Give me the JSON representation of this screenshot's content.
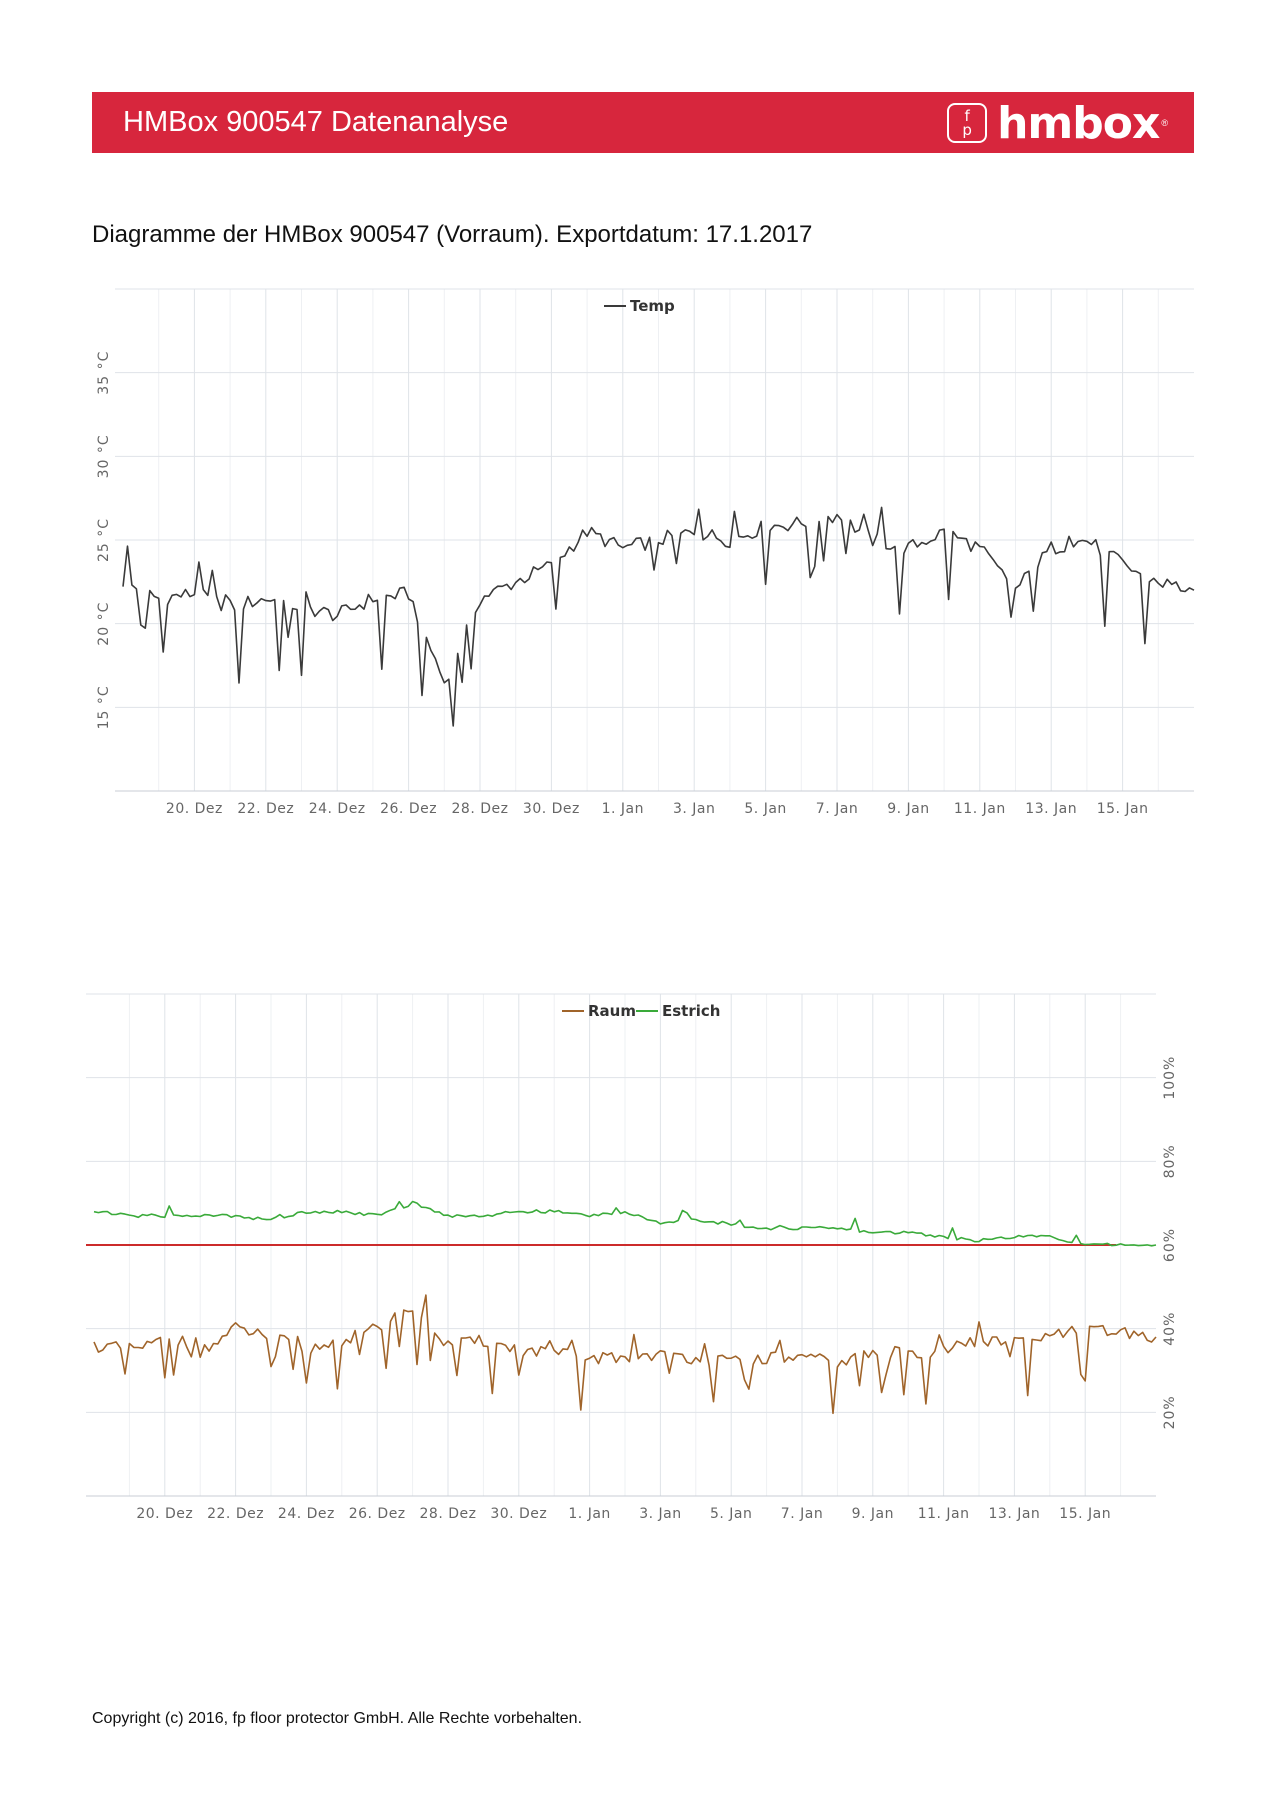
{
  "header": {
    "title": "HMBox 900547 Datenanalyse",
    "logo_mark_top": "f",
    "logo_mark_bottom": "p",
    "logo_text": "hmbox",
    "logo_reg": "®"
  },
  "subtitle": "Diagramme der HMBox 900547 (Vorraum). Exportdatum: 17.1.2017",
  "footer": "Copyright (c) 2016, fp floor protector GmbH. Alle Rechte vorbehalten.",
  "colors": {
    "header_bg": "#d7263d",
    "temp_line": "#3a3a3a",
    "raum_line": "#a0642a",
    "estrich_line": "#3aaa3a",
    "threshold_line": "#cc2b2b",
    "grid": "#dfe3e8"
  },
  "chart_data": [
    {
      "type": "line",
      "title": "",
      "xlabel": "",
      "ylabel": "",
      "x_tick_labels": [
        "20. Dez",
        "22. Dez",
        "24. Dez",
        "26. Dez",
        "28. Dez",
        "30. Dez",
        "1. Jan",
        "3. Jan",
        "5. Jan",
        "7. Jan",
        "9. Jan",
        "11. Jan",
        "13. Jan",
        "15. Jan"
      ],
      "y_tick_labels": [
        "15 °C",
        "20 °C",
        "25 °C",
        "30 °C",
        "35 °C"
      ],
      "x_range": [
        "2016-12-18",
        "2017-01-17"
      ],
      "ylim": [
        10,
        40
      ],
      "legend": {
        "position": "top-center",
        "entries": [
          "Temp"
        ]
      },
      "grid": true,
      "series": [
        {
          "name": "Temp",
          "x": [
            "2016-12-18",
            "2016-12-19",
            "2016-12-20",
            "2016-12-21",
            "2016-12-22",
            "2016-12-23",
            "2016-12-24",
            "2016-12-25",
            "2016-12-26",
            "2016-12-27",
            "2016-12-28",
            "2016-12-29",
            "2016-12-30",
            "2016-12-31",
            "2017-01-01",
            "2017-01-02",
            "2017-01-03",
            "2017-01-04",
            "2017-01-05",
            "2017-01-06",
            "2017-01-07",
            "2017-01-08",
            "2017-01-09",
            "2017-01-10",
            "2017-01-11",
            "2017-01-12",
            "2017-01-13",
            "2017-01-14",
            "2017-01-15",
            "2017-01-16",
            "2017-01-17"
          ],
          "y": [
            22.5,
            21.5,
            21.8,
            21.0,
            21.5,
            21.0,
            20.5,
            21.5,
            21.8,
            16.5,
            21.5,
            22.5,
            23.5,
            25.5,
            24.5,
            25.0,
            25.5,
            25.0,
            25.8,
            26.0,
            26.5,
            25.0,
            24.5,
            25.5,
            24.5,
            22.0,
            24.5,
            25.0,
            23.5,
            22.5,
            22.0
          ]
        }
      ]
    },
    {
      "type": "line",
      "title": "",
      "xlabel": "",
      "ylabel": "",
      "x_tick_labels": [
        "20. Dez",
        "22. Dez",
        "24. Dez",
        "26. Dez",
        "28. Dez",
        "30. Dez",
        "1. Jan",
        "3. Jan",
        "5. Jan",
        "7. Jan",
        "9. Jan",
        "11. Jan",
        "13. Jan",
        "15. Jan"
      ],
      "y_tick_labels": [
        "20%",
        "40%",
        "60%",
        "80%",
        "100%"
      ],
      "x_range": [
        "2016-12-18",
        "2017-01-17"
      ],
      "ylim": [
        0,
        120
      ],
      "legend": {
        "position": "top-center",
        "entries": [
          "Raum",
          "Estrich"
        ]
      },
      "grid": true,
      "threshold": 60,
      "series": [
        {
          "name": "Raum",
          "x": [
            "2016-12-18",
            "2016-12-19",
            "2016-12-20",
            "2016-12-21",
            "2016-12-22",
            "2016-12-23",
            "2016-12-24",
            "2016-12-25",
            "2016-12-26",
            "2016-12-27",
            "2016-12-28",
            "2016-12-29",
            "2016-12-30",
            "2016-12-31",
            "2017-01-01",
            "2017-01-02",
            "2017-01-03",
            "2017-01-04",
            "2017-01-05",
            "2017-01-06",
            "2017-01-07",
            "2017-01-08",
            "2017-01-09",
            "2017-01-10",
            "2017-01-11",
            "2017-01-12",
            "2017-01-13",
            "2017-01-14",
            "2017-01-15",
            "2017-01-16",
            "2017-01-17"
          ],
          "y": [
            36,
            35,
            37,
            34,
            40,
            38,
            35,
            37,
            40,
            45,
            36,
            37,
            35,
            34,
            33,
            33,
            34,
            33,
            32,
            33,
            33,
            32,
            34,
            34,
            35,
            37,
            37,
            38,
            40,
            39,
            38
          ]
        },
        {
          "name": "Estrich",
          "x": [
            "2016-12-18",
            "2016-12-19",
            "2016-12-20",
            "2016-12-21",
            "2016-12-22",
            "2016-12-23",
            "2016-12-24",
            "2016-12-25",
            "2016-12-26",
            "2016-12-27",
            "2016-12-28",
            "2016-12-29",
            "2016-12-30",
            "2016-12-31",
            "2017-01-01",
            "2017-01-02",
            "2017-01-03",
            "2017-01-04",
            "2017-01-05",
            "2017-01-06",
            "2017-01-07",
            "2017-01-08",
            "2017-01-09",
            "2017-01-10",
            "2017-01-11",
            "2017-01-12",
            "2017-01-13",
            "2017-01-14",
            "2017-01-15",
            "2017-01-16",
            "2017-01-17"
          ],
          "y": [
            68,
            67,
            67,
            67,
            67,
            66,
            68,
            68,
            67,
            70,
            67,
            67,
            68,
            68,
            67,
            68,
            65,
            66,
            65,
            64,
            64,
            64,
            63,
            63,
            62,
            61,
            62,
            62,
            60,
            60,
            60
          ]
        }
      ]
    }
  ]
}
